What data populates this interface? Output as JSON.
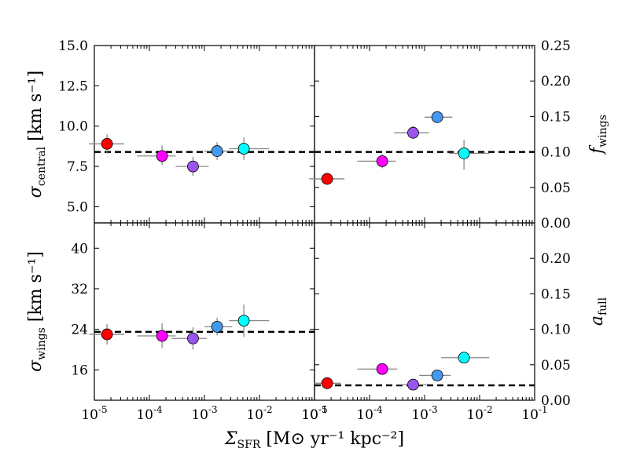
{
  "chart_data": {
    "type": "scatter",
    "layout": "2x2 grid, shared x axis, left axis on left column, right axis on right column",
    "colors": [
      "#ff0000",
      "#ff00ff",
      "#9955ee",
      "#4499ee",
      "#00ffff"
    ],
    "xscale": "log",
    "xlim": [
      1e-05,
      0.1
    ],
    "xticks": [
      "10^{-5}",
      "10^{-4}",
      "10^{-3}",
      "10^{-2}",
      "10^{-1}"
    ],
    "xlabel": {
      "main": "Σ",
      "sub": "SFR",
      "rest": " [M⊙ yr⁻¹ kpc⁻²]"
    },
    "panels": [
      {
        "name": "sigma-central",
        "ylabel": {
          "main": "σ",
          "sub": "central",
          "rest": " [km s⁻¹]"
        },
        "ylabel_side": "left",
        "ylim": [
          4.0,
          15.0
        ],
        "yticks": [
          "5.0",
          "7.5",
          "10.0",
          "12.5",
          "15.0"
        ],
        "ytick_values": [
          5.0,
          7.5,
          10.0,
          12.5,
          15.0
        ],
        "reference_line": 8.4,
        "points": [
          {
            "x": 1.7e-05,
            "y": 8.9,
            "xerr": [
              8e-06,
              3.5e-05
            ],
            "yerr": [
              8.3,
              9.5
            ]
          },
          {
            "x": 0.00017,
            "y": 8.15,
            "xerr": [
              6e-05,
              0.0003
            ],
            "yerr": [
              7.6,
              8.8
            ]
          },
          {
            "x": 0.00062,
            "y": 7.5,
            "xerr": [
              0.0003,
              0.0012
            ],
            "yerr": [
              6.9,
              8.1
            ]
          },
          {
            "x": 0.0017,
            "y": 8.45,
            "xerr": [
              0.001,
              0.0032
            ],
            "yerr": [
              7.9,
              9.0
            ]
          },
          {
            "x": 0.0052,
            "y": 8.6,
            "xerr": [
              0.0028,
              0.015
            ],
            "yerr": [
              7.9,
              9.3
            ]
          }
        ]
      },
      {
        "name": "f-wings",
        "ylabel": {
          "main": "f",
          "sub": "wings",
          "rest": ""
        },
        "ylabel_side": "right",
        "ylim": [
          0.0,
          0.25
        ],
        "yticks": [
          "0.00",
          "0.05",
          "0.10",
          "0.15",
          "0.20",
          "0.25"
        ],
        "ytick_values": [
          0.0,
          0.05,
          0.1,
          0.15,
          0.2,
          0.25
        ],
        "reference_line": 0.1,
        "points": [
          {
            "x": 1.7e-05,
            "y": 0.062,
            "xerr": [
              8e-06,
              3.5e-05
            ],
            "yerr": [
              0.055,
              0.07
            ]
          },
          {
            "x": 0.00017,
            "y": 0.087,
            "xerr": [
              6e-05,
              0.0003
            ],
            "yerr": [
              0.077,
              0.097
            ]
          },
          {
            "x": 0.00062,
            "y": 0.127,
            "xerr": [
              0.00028,
              0.0012
            ],
            "yerr": [
              0.118,
              0.137
            ]
          },
          {
            "x": 0.0017,
            "y": 0.149,
            "xerr": [
              0.001,
              0.0032
            ],
            "yerr": [
              0.142,
              0.156
            ]
          },
          {
            "x": 0.0052,
            "y": 0.098,
            "xerr": [
              0.0028,
              0.015
            ],
            "yerr": [
              0.075,
              0.117
            ]
          }
        ]
      },
      {
        "name": "sigma-wings",
        "ylabel": {
          "main": "σ",
          "sub": "wings",
          "rest": " [km s⁻¹]"
        },
        "ylabel_side": "left",
        "ylim": [
          10.0,
          45.0
        ],
        "yticks": [
          "16",
          "24",
          "32",
          "40"
        ],
        "ytick_values": [
          16,
          24,
          32,
          40
        ],
        "reference_line": 23.5,
        "points": [
          {
            "x": 1.7e-05,
            "y": 23.0,
            "xerr": [
              8e-06,
              3.5e-05
            ],
            "yerr": [
              21.0,
              25.0
            ]
          },
          {
            "x": 0.00017,
            "y": 22.7,
            "xerr": [
              6e-05,
              0.0003
            ],
            "yerr": [
              20.3,
              25.2
            ]
          },
          {
            "x": 0.00062,
            "y": 22.2,
            "xerr": [
              0.00025,
              0.0011
            ],
            "yerr": [
              20.0,
              24.4
            ]
          },
          {
            "x": 0.0017,
            "y": 24.5,
            "xerr": [
              0.001,
              0.0032
            ],
            "yerr": [
              22.8,
              26.3
            ]
          },
          {
            "x": 0.0052,
            "y": 25.7,
            "xerr": [
              0.0028,
              0.015
            ],
            "yerr": [
              22.5,
              28.9
            ]
          }
        ]
      },
      {
        "name": "a-full",
        "ylabel": {
          "main": "a",
          "sub": "full",
          "rest": ""
        },
        "ylabel_side": "right",
        "ylim": [
          0.0,
          0.25
        ],
        "yticks": [
          "0.00",
          "0.05",
          "0.10",
          "0.15",
          "0.20"
        ],
        "ytick_values": [
          0.0,
          0.05,
          0.1,
          0.15,
          0.2
        ],
        "reference_line": 0.021,
        "points": [
          {
            "x": 1.7e-05,
            "y": 0.024,
            "xerr": [
              1e-05,
              3e-05
            ],
            "yerr": [
              0.021,
              0.027
            ]
          },
          {
            "x": 0.00017,
            "y": 0.044,
            "xerr": [
              6e-05,
              0.00032
            ],
            "yerr": [
              0.041,
              0.047
            ]
          },
          {
            "x": 0.00062,
            "y": 0.022,
            "xerr": [
              0.0003,
              0.0011
            ],
            "yerr": [
              0.019,
              0.025
            ]
          },
          {
            "x": 0.0017,
            "y": 0.035,
            "xerr": [
              0.0008,
              0.003
            ],
            "yerr": [
              0.032,
              0.038
            ]
          },
          {
            "x": 0.0052,
            "y": 0.06,
            "xerr": [
              0.002,
              0.015
            ],
            "yerr": [
              0.057,
              0.063
            ]
          }
        ]
      }
    ]
  }
}
